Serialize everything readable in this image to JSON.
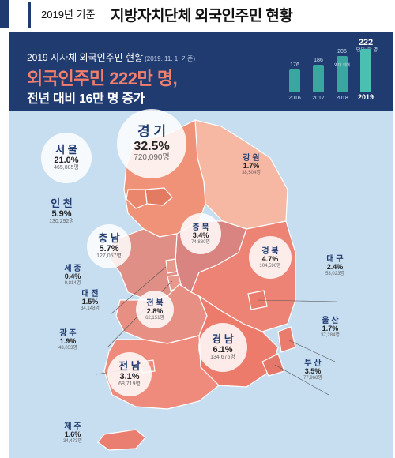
{
  "top": {
    "year_label": "2019년 기준",
    "title": "지방자치단체 외국인주민 현황"
  },
  "header": {
    "subtitle": "2019 지자체 외국인주민 현황",
    "subtitle_date": "(2019. 11. 1. 기준)",
    "headline": "외국인주민 222만 명,",
    "subline": "전년 대비 16만 명 증가"
  },
  "chart_data": {
    "type": "bar",
    "unit": "단위: 만 명",
    "categories": [
      "2016",
      "2017",
      "2018",
      "2019"
    ],
    "values": [
      176,
      186,
      205,
      222
    ],
    "highlight": "2019",
    "note": "역대 최대"
  },
  "colors": {
    "header": "#1f3b70",
    "sea": "#c7def1",
    "accent": "#f47f6c",
    "bar": "#3aa6a0"
  },
  "regions": [
    {
      "key": "gyeonggi",
      "name": "경 기",
      "pct": "32.5%",
      "count": "720,090명",
      "size": "lg"
    },
    {
      "key": "seoul",
      "name": "서 울",
      "pct": "21.0%",
      "count": "465,885명",
      "size": "md"
    },
    {
      "key": "incheon",
      "name": "인 천",
      "pct": "5.9%",
      "count": "130,292명",
      "size": "md"
    },
    {
      "key": "gangwon",
      "name": "강 원",
      "pct": "1.7%",
      "count": "38,504명",
      "size": "sm"
    },
    {
      "key": "chungnam",
      "name": "충 남",
      "pct": "5.7%",
      "count": "127,057명",
      "size": "md"
    },
    {
      "key": "chungbuk",
      "name": "충 북",
      "pct": "3.4%",
      "count": "74,880명",
      "size": "sm"
    },
    {
      "key": "gyeongbuk",
      "name": "경 북",
      "pct": "4.7%",
      "count": "104,596명",
      "size": "sm"
    },
    {
      "key": "sejong",
      "name": "세 종",
      "pct": "0.4%",
      "count": "9,814명",
      "size": "sm"
    },
    {
      "key": "daejeon",
      "name": "대 전",
      "pct": "1.5%",
      "count": "34,148명",
      "size": "sm"
    },
    {
      "key": "daegu",
      "name": "대 구",
      "pct": "2.4%",
      "count": "53,023명",
      "size": "sm"
    },
    {
      "key": "jeonbuk",
      "name": "전 북",
      "pct": "2.8%",
      "count": "62,151명",
      "size": "sm"
    },
    {
      "key": "gwangju",
      "name": "광 주",
      "pct": "1.9%",
      "count": "43,053명",
      "size": "sm"
    },
    {
      "key": "gyeongnam",
      "name": "경 남",
      "pct": "6.1%",
      "count": "134,675명",
      "size": "md"
    },
    {
      "key": "ulsan",
      "name": "울 산",
      "pct": "1.7%",
      "count": "37,284명",
      "size": "sm"
    },
    {
      "key": "busan",
      "name": "부 산",
      "pct": "3.5%",
      "count": "77,968명",
      "size": "sm"
    },
    {
      "key": "jeonnam",
      "name": "전 남",
      "pct": "3.1%",
      "count": "68,719명",
      "size": "md"
    },
    {
      "key": "jeju",
      "name": "제 주",
      "pct": "1.6%",
      "count": "34,473명",
      "size": "sm"
    }
  ]
}
